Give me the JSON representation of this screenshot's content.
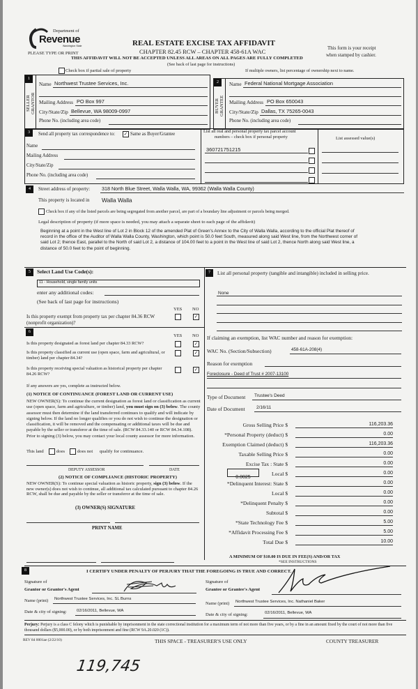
{
  "header": {
    "logo_dept": "Department of",
    "logo_revenue": "Revenue",
    "logo_state": "Washington State",
    "please_type": "PLEASE TYPE OR PRINT",
    "title": "REAL ESTATE EXCISE TAX AFFIDAVIT",
    "chapter": "CHAPTER 82.45 RCW – CHAPTER 458-61A WAC",
    "warning": "THIS AFFIDAVIT WILL NOT BE ACCEPTED UNLESS ALL AREAS ON ALL PAGES ARE FULLY COMPLETED",
    "see_back": "(See back of last page for instructions)",
    "receipt_1": "This form is your receipt",
    "receipt_2": "when stamped by cashier.",
    "partial_sale": "Check box if partial sale of property",
    "multiple_owners": "If multiple owners, list percentage of ownership next to name."
  },
  "seller": {
    "num": "1",
    "side_label": "SELLER GRANTOR",
    "name_label": "Name",
    "name": "Northwest Trustee Services, Inc.",
    "mailing_label": "Mailing Address",
    "mailing": "PO Box 997",
    "city_label": "City/State/Zip",
    "city": "Bellevue, WA 98009-0997",
    "phone_label": "Phone No. (including area code)"
  },
  "buyer": {
    "num": "2",
    "side_label": "BUYER GRANTEE",
    "name_label": "Name",
    "name": "Federal National Mortgage Association",
    "mailing_label": "Mailing Address",
    "mailing": "PO Box 650043",
    "city_label": "City/State/Zip",
    "city": "Dallas, TX 75265-0043",
    "phone_label": "Phone No. (including area code)"
  },
  "correspondence": {
    "num": "3",
    "send_label": "Send all property tax correspondence to:",
    "same_checked": true,
    "same_label": "Same as Buyer/Grantee",
    "name_label": "Name",
    "mailing_label": "Mailing Address",
    "city_label": "City/State/Zip",
    "phone_label": "Phone No. (including area code)",
    "parcel_header_1": "List all real and personal property tax parcel account",
    "parcel_header_2": "numbers – check box if personal property",
    "parcel": "360721751215",
    "assessed_header": "List assessed value(s)"
  },
  "property": {
    "num": "4",
    "street_label": "Street address of property:",
    "street": "318 North Blue Street, Walla Walla, WA, 99362   (Walla Walla County)",
    "located_label": "This property is located in",
    "located": "Walla Walla",
    "segregated": "Check box if any of the listed parcels are being segregated from another parcel, are part of a boundary line adjustment or parcels being merged.",
    "legal_label": "Legal description of property (if more space is needed, you may attach a separate sheet to each page of the affidavit)",
    "legal": "Beginning at a point in the West line of Lot 2 in Block 12 of the amended Plat of Green's Annex to the City of Walla Walla, according to the official Plat thereof of record in the office of the Auditor of Walla Walla County, Washington, which point is 50.0 feet South, measured along said West line, from the Northwest corner of said Lot 2; thence East, parallel to the North of said Lot 2, a distance of 104.00 feet to a point in the West line of said Lot 2, thence North along said West line, a distance of 50.0 feet to the point of beginning."
  },
  "land_use": {
    "num": "5",
    "label": "Select Land Use Code(s):",
    "value": "11 - Household, single family units",
    "additional_label": "enter any additional codes:",
    "see_back": "(See back of last page for instructions)",
    "yes": "YES",
    "no": "NO",
    "exempt_q": "Is this property exempt from property tax per chapter 84.36 RCW (nonprofit organization)?",
    "exempt_answer": "NO"
  },
  "designation": {
    "num": "6",
    "yes": "YES",
    "no": "NO",
    "questions": [
      {
        "text": "Is this property designated as forest land per chapter 84.33 RCW?",
        "answer": "NO"
      },
      {
        "text": "Is this property classified as current use (open space, farm and agricultural, or timber) land per chapter 84.34?",
        "answer": "NO"
      },
      {
        "text": "Is this property receiving special valuation as historical property per chapter 84.26 RCW?",
        "answer": "NO"
      }
    ],
    "if_yes": "If any answers are yes, complete as instructed below.",
    "notice1_title": "(1) NOTICE OF CONTINUANCE (FOREST LAND OR CURRENT USE)",
    "notice1_a": "NEW OWNER(S): To continue the current designation as forest land or classification as current use (open space, farm and agriculture, or timber) land, ",
    "notice1_bold": "you must sign on (3) below",
    "notice1_b": ". The county assessor must then determine if the land transferred continues to qualify and will indicate by signing below. If the land no longer qualifies or you do not wish to continue the designation or classification, it will be removed and the compensating or additional taxes will be due and payable by the seller or transferor at the time of sale. (RCW 84.33.140 or RCW 84.34.108). Prior to signing (3) below, you may contact your local county assessor for more information.",
    "this_land": "This land",
    "does": "does",
    "does_not": "does not",
    "qualify": "qualify for continuance.",
    "deputy": "DEPUTY ASSESSOR",
    "date": "DATE",
    "notice2_title": "(2) NOTICE OF COMPLIANCE (HISTORIC PROPERTY)",
    "notice2_a": "NEW OWNER(S): To continue special valuation as historic property, ",
    "notice2_bold": "sign (3) below",
    "notice2_b": ". If the new owner(s) does not wish to continue, all additional tax calculated pursuant to chapter 84.26 RCW, shall be due and payable by the seller or transferor at the time of sale.",
    "owner_sig": "(3) OWNER(S) SIGNATURE",
    "print_name": "PRINT NAME"
  },
  "personal_property": {
    "num": "7",
    "label": "List all  personal property (tangible and intangible) included in selling price.",
    "value": "None",
    "exemption_label": "If claiming an exemption, list WAC number and reason for exemption:",
    "wac_label": "WAC No. (Section/Subsection)",
    "wac": "458-61A-208(4)",
    "reason_label": "Reason for exemption",
    "reason": "Foreclosure - Deed of Trust # 2007-13100",
    "doc_type_label": "Type of Document",
    "doc_type": "Trustee's Deed",
    "doc_date_label": "Date of Document",
    "doc_date": "2/16/11",
    "local_rate": "0.0025",
    "fees": [
      {
        "label": "Gross Selling Price $",
        "value": "116,203.36"
      },
      {
        "label": "*Personal Property (deduct) $",
        "value": "0.00"
      },
      {
        "label": "Exemption Claimed (deduct) $",
        "value": "116,203.36"
      },
      {
        "label": "Taxable Selling Price $",
        "value": "0.00"
      },
      {
        "label": "Excise Tax : State $",
        "value": "0.00"
      },
      {
        "label": "Local $",
        "value": "0.00"
      },
      {
        "label": "*Delinquent Interest: State $",
        "value": "0.00"
      },
      {
        "label": "Local $",
        "value": "0.00"
      },
      {
        "label": "*Delinquent Penalty $",
        "value": "0.00"
      },
      {
        "label": "Subtotal $",
        "value": "0.00"
      },
      {
        "label": "*State Technology Fee $",
        "value": "5.00"
      },
      {
        "label": "*Affidavit Processing Fee $",
        "value": "5.00"
      },
      {
        "label": "Total Due $",
        "value": "10.00"
      }
    ],
    "minimum": "A MINIMUM OF $10.00 IS DUE IN FEE(S) AND/OR TAX",
    "see_instructions": "*SEE INSTRUCTIONS"
  },
  "certification": {
    "num": "8",
    "certify": "I CERTIFY UNDER PENALTY OF PERJURY THAT THE FOREGOING IS TRUE AND CORRECT.",
    "grantor_sig_1": "Signature of",
    "grantor_sig_2": "Grantor or Grantor's Agent",
    "grantor_name_label": "Name (print)",
    "grantor_name": "Northwest Trustee Services, Inc.   SL Burns",
    "grantor_date_label": "Date & city of signing:",
    "grantor_date": "02/16/2011, Bellevue, WA",
    "grantee_sig_1": "Signature of",
    "grantee_sig_2": "Grantee or Grantee's Agent",
    "grantee_name_label": "Name (print)",
    "grantee_name": "Northwest Trustee Services, Inc.   Nathaniel Baker",
    "grantee_date_label": "Date & city of signing:",
    "grantee_date": "02/16/2011, Bellevue, WA",
    "perjury_bold": "Perjury:",
    "perjury": " Perjury is a class C felony which is punishable by imprisonment in the state correctional institution for a maximum term of not more than five years, or by a fine in an amount fixed by the court of not more than five thousand dollars ($5,000.00), or by both imprisonment and fine (RCW 9A.20.020 (1C)).",
    "rev": "REV 84 0001ae (2/22/10)",
    "treasurer_space": "THIS SPACE - TREASURER'S USE ONLY",
    "county_treasurer": "COUNTY TREASURER",
    "handwritten": "119,745"
  }
}
